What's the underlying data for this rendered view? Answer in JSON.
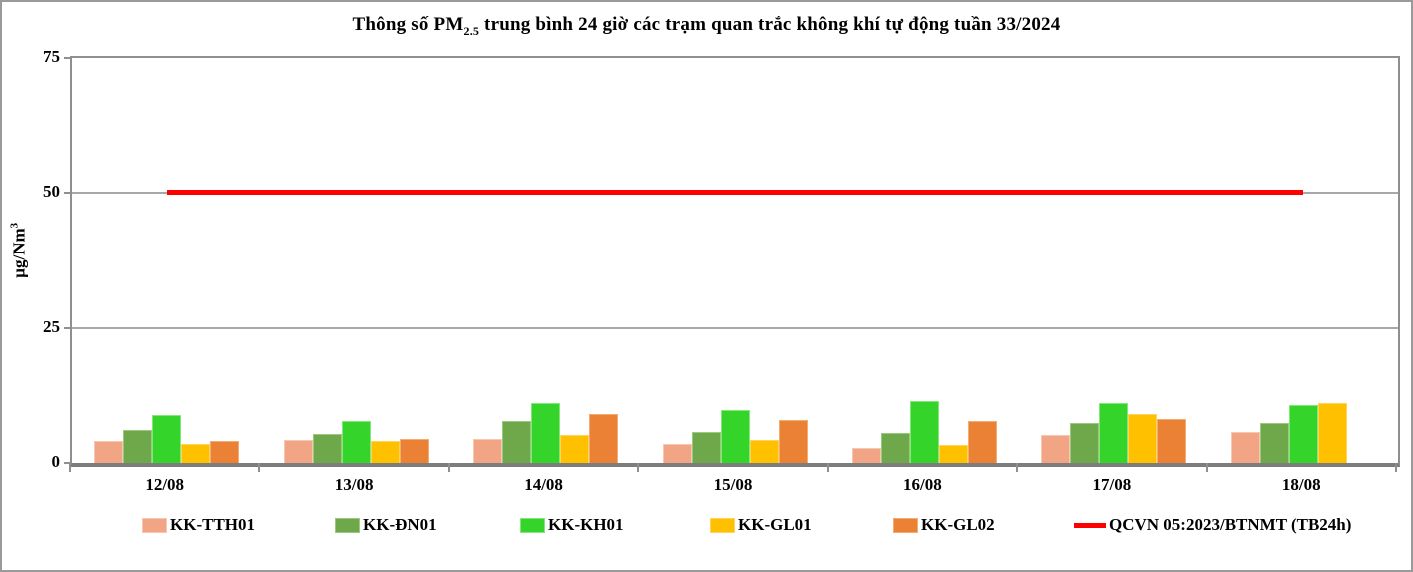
{
  "title": {
    "prefix": "Thông số PM",
    "subscript": "2.5",
    "suffix": " trung bình 24 giờ các trạm quan trắc không khí tự động tuần 33/2024"
  },
  "y_axis": {
    "label_main": "µg/Nm",
    "label_sup": "3"
  },
  "chart_data": {
    "type": "bar",
    "title": "Thông số PM2.5 trung bình 24 giờ các trạm quan trắc không khí tự động tuần 33/2024",
    "ylabel": "µg/Nm³",
    "xlabel": "",
    "ylim": [
      0,
      75
    ],
    "yticks": [
      0,
      25,
      50,
      75
    ],
    "grid": true,
    "legend_position": "bottom",
    "categories": [
      "12/08",
      "13/08",
      "14/08",
      "15/08",
      "16/08",
      "17/08",
      "18/08"
    ],
    "series": [
      {
        "name": "KK-TTH01",
        "color": "#F2A584",
        "edge_color": "#F7C8B0",
        "values": [
          4.0,
          4.2,
          4.4,
          3.5,
          2.8,
          5.1,
          5.8
        ]
      },
      {
        "name": "KK-ĐN01",
        "color": "#6FA84A",
        "edge_color": "#9BC97E",
        "values": [
          6.2,
          5.3,
          7.7,
          5.8,
          5.6,
          7.4,
          7.4
        ]
      },
      {
        "name": "KK-KH01",
        "color": "#35D42A",
        "edge_color": "#83E878",
        "values": [
          8.8,
          7.8,
          11.2,
          9.9,
          11.5,
          11.1,
          10.7
        ]
      },
      {
        "name": "KK-GL01",
        "color": "#FFC000",
        "edge_color": "#FFD45C",
        "values": [
          3.5,
          4.0,
          5.1,
          4.2,
          3.4,
          9.1,
          11.1
        ]
      },
      {
        "name": "KK-GL02",
        "color": "#EB8135",
        "edge_color": "#F3AC74",
        "values": [
          4.0,
          4.4,
          9.1,
          8.0,
          7.7,
          8.2,
          null
        ]
      }
    ],
    "reference_line": {
      "label": "QCVN 05:2023/BTNMT (TB24h)",
      "value": 50,
      "color": "#FE0000",
      "x_start_category": "12/08",
      "x_end_category": "18/08"
    }
  }
}
